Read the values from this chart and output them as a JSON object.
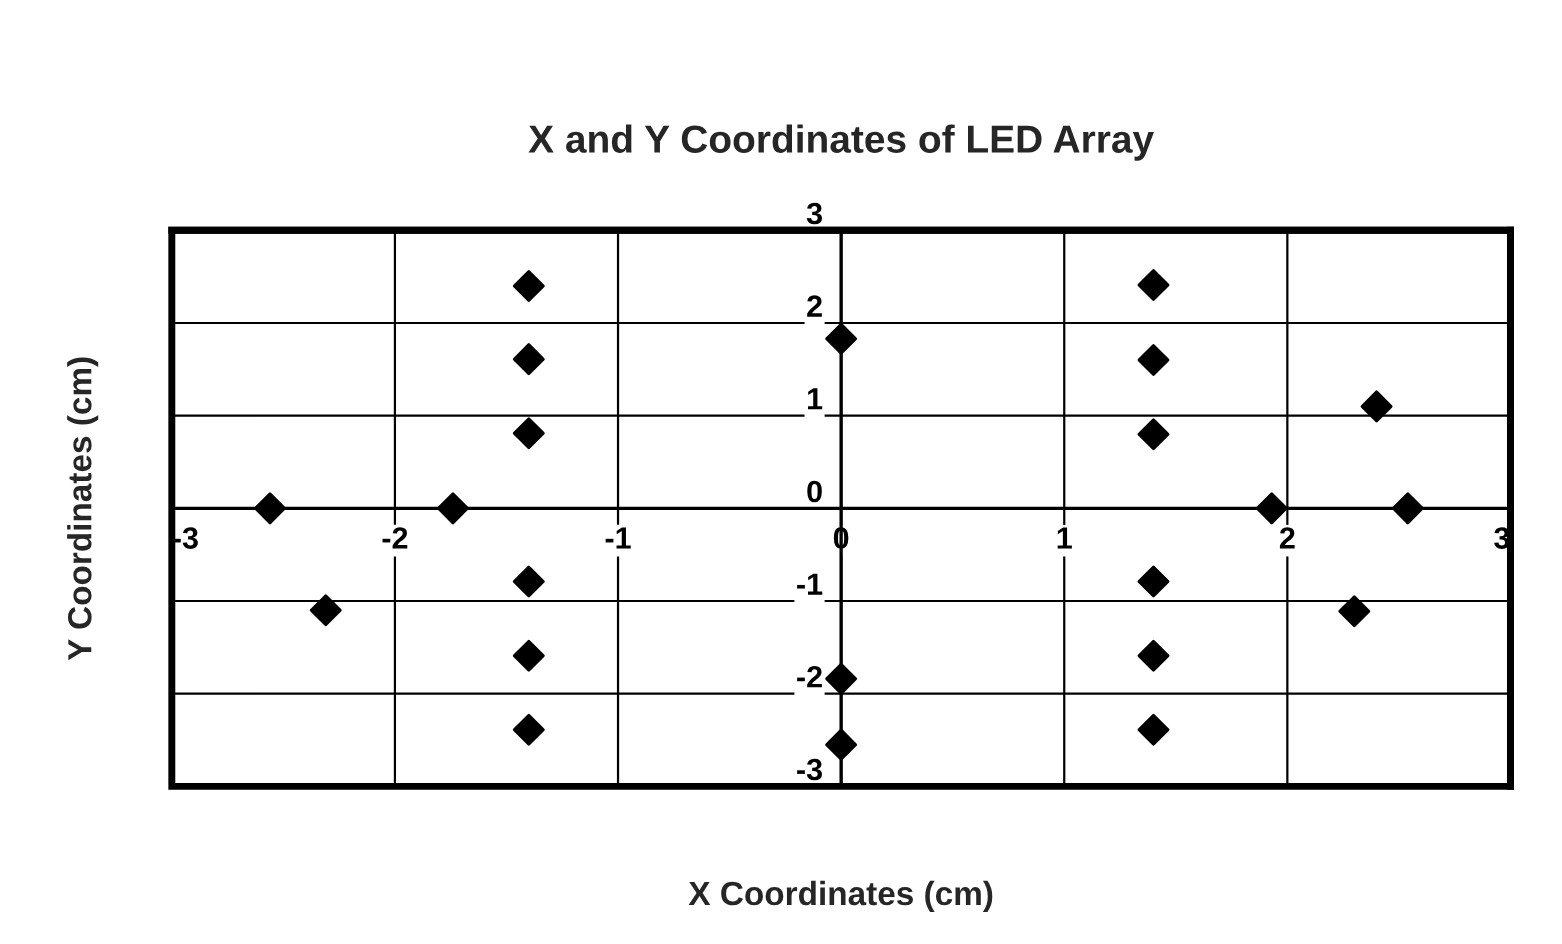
{
  "chart_data": {
    "type": "scatter",
    "title": "X and Y Coordinates of LED Array",
    "xlabel": "X Coordinates (cm)",
    "ylabel": "Y Coordinates (cm)",
    "series": [
      {
        "color": "#000000",
        "x": [
          -2.56,
          -1.74,
          -2.31,
          -1.4,
          -1.4,
          -1.4,
          -1.4,
          -1.4,
          -1.4,
          0,
          0,
          0,
          1.4,
          1.4,
          1.4,
          1.4,
          1.4,
          1.4,
          2.4,
          1.93,
          2.54,
          2.3
        ],
        "values": [
          0,
          0,
          -1.1,
          2.4,
          1.61,
          0.81,
          -0.79,
          -1.59,
          -2.39,
          1.83,
          -1.84,
          -2.55,
          2.41,
          1.6,
          0.8,
          -0.79,
          -1.59,
          -2.39,
          1.1,
          0,
          0,
          -1.11
        ]
      }
    ],
    "xlim": [
      -3,
      3
    ],
    "ylim": [
      -3,
      3
    ],
    "xticks": [
      -3,
      -2,
      -1,
      0,
      1,
      2,
      3
    ],
    "yticks": [
      -3,
      -2,
      -1,
      0,
      1,
      2,
      3
    ],
    "grid": true,
    "marker": "diamond",
    "legend": false
  }
}
